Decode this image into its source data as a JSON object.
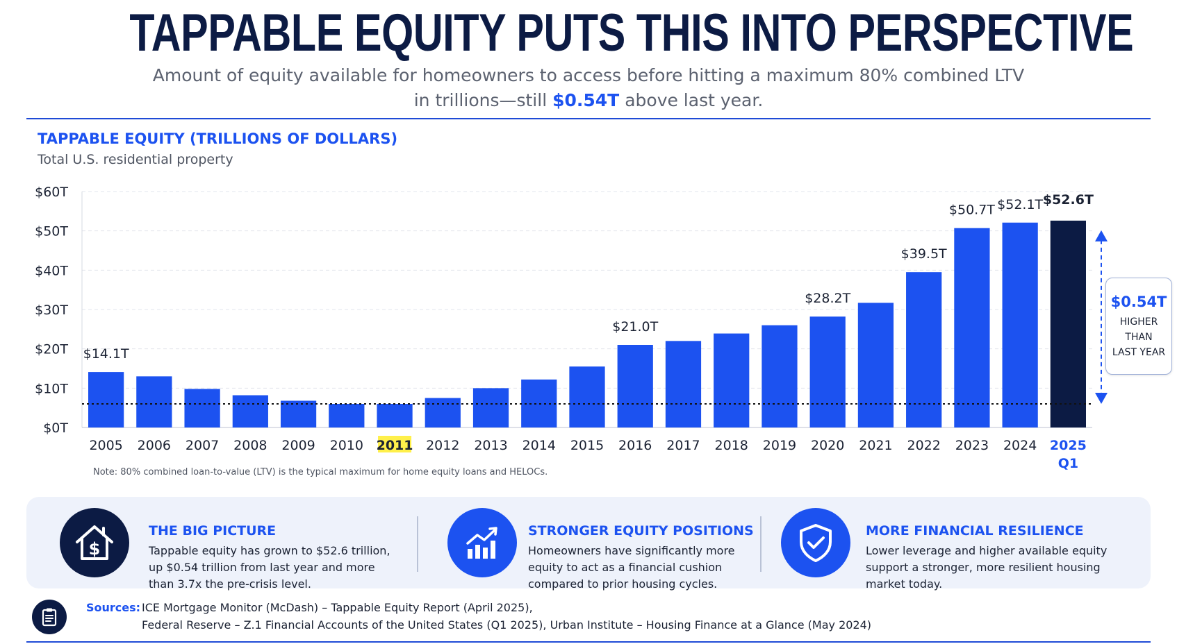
{
  "header": {
    "title": "TAPPABLE EQUITY PUTS THIS INTO PERSPECTIVE",
    "subtitle_line1": "Amount of equity available for homeowners to access before hitting a maximum 80% combined LTV",
    "subtitle_line2_pre": "in trillions—still",
    "subtitle_line2_highlight": "$0.54T",
    "subtitle_line2_post": "above last year."
  },
  "chart_data": {
    "type": "bar",
    "title": "TAPPABLE EQUITY (TRILLIONS OF DOLLARS)",
    "subtitle": "Total U.S. residential property",
    "categories": [
      "2005",
      "2006",
      "2007",
      "2008",
      "2009",
      "2010",
      "2011",
      "2012",
      "2013",
      "2014",
      "2015",
      "2016",
      "2017",
      "2018",
      "2019",
      "2020",
      "2021",
      "2022",
      "2023",
      "2024",
      "2025 Q1"
    ],
    "series": [
      {
        "values": [
          14.1,
          13.0,
          9.8,
          8.2,
          6.8,
          6.0,
          6.0,
          7.5,
          10.0,
          12.2,
          15.5,
          21.0,
          22.0,
          23.9,
          26.0,
          28.2,
          31.7,
          39.5,
          50.7,
          52.1,
          52.6
        ]
      }
    ],
    "data_labels": [
      {
        "index": 0,
        "text": "$14.1T"
      },
      {
        "index": 11,
        "text": "$21.0T"
      },
      {
        "index": 15,
        "text": "$28.2T"
      },
      {
        "index": 17,
        "text": "$39.5T"
      },
      {
        "index": 18,
        "text": "$50.7T"
      },
      {
        "index": 19,
        "text": "$52.1T"
      },
      {
        "index": 20,
        "text": "$52.6T"
      }
    ],
    "y_ticks": [
      "$0T",
      "$10T",
      "$20T",
      "$30T",
      "$40T",
      "$50T",
      "$60T"
    ],
    "ylim": [
      0,
      60
    ],
    "reference_line_value": 6.0,
    "highlighted_category": "2011",
    "emphasized_category": "2025 Q1",
    "grid": true,
    "bar_color": "#1c52f0",
    "emphasis_color": "#0c1b44",
    "highlight_color": "#fff04a",
    "note": "Note: 80% combined loan-to-value (LTV) is the typical maximum for home equity loans and HELOCs."
  },
  "callout": {
    "value": "$0.54T",
    "line1": "HIGHER",
    "line2": "THAN",
    "line3": "LAST YEAR"
  },
  "cards": [
    {
      "icon": "house-dollar-icon",
      "title": "THE BIG PICTURE",
      "line1": "Tappable equity has grown to $52.6 trillion,",
      "line2": "up $0.54 trillion from last year and more",
      "line3": "than 3.7x the pre-crisis level."
    },
    {
      "icon": "chart-up-icon",
      "title": "STRONGER EQUITY POSITIONS",
      "line1": "Homeowners have significantly more",
      "line2": "equity to act as a financial cushion",
      "line3": "compared to prior housing cycles."
    },
    {
      "icon": "shield-check-icon",
      "title": "MORE FINANCIAL RESILIENCE",
      "line1": "Lower leverage and higher available equity",
      "line2": "support a stronger, more resilient housing",
      "line3": "market today."
    }
  ],
  "sources": {
    "icon": "clipboard-icon",
    "label": "Sources:",
    "line1": "ICE Mortgage Monitor (McDash) – Tappable Equity Report (April 2025),",
    "line2": "Federal Reserve – Z.1 Financial Accounts of the United States (Q1 2025), Urban Institute – Housing Finance at a Glance (May 2024)"
  }
}
